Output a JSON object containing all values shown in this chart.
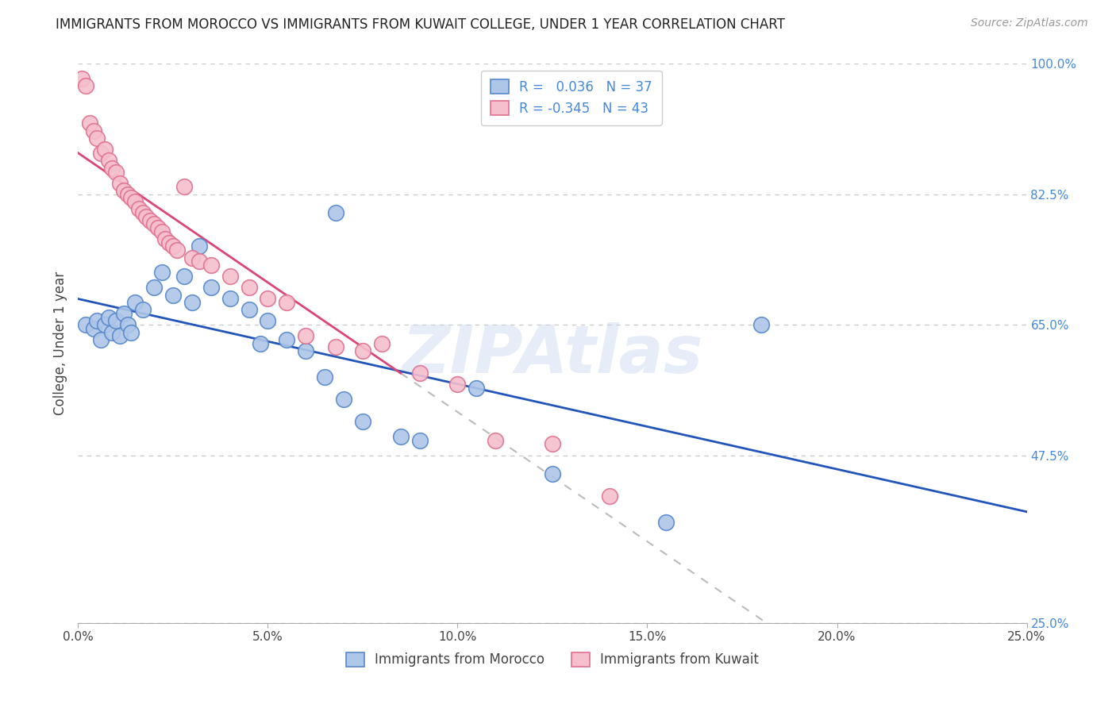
{
  "title": "IMMIGRANTS FROM MOROCCO VS IMMIGRANTS FROM KUWAIT COLLEGE, UNDER 1 YEAR CORRELATION CHART",
  "source": "Source: ZipAtlas.com",
  "ylabel": "College, Under 1 year",
  "x_min": 0.0,
  "x_max": 25.0,
  "y_min": 25.0,
  "y_max": 100.0,
  "x_ticks": [
    0.0,
    5.0,
    10.0,
    15.0,
    20.0,
    25.0
  ],
  "y_ticks": [
    25.0,
    47.5,
    65.0,
    82.5,
    100.0
  ],
  "morocco_color": "#aec6e8",
  "morocco_edge": "#5588cc",
  "kuwait_color": "#f5bfcd",
  "kuwait_edge": "#e07090",
  "line_morocco_color": "#2255bb",
  "line_kuwait_color": "#dd4477",
  "morocco_R": 0.036,
  "morocco_N": 37,
  "kuwait_R": -0.345,
  "kuwait_N": 43,
  "legend_label_morocco": "Immigrants from Morocco",
  "legend_label_kuwait": "Immigrants from Kuwait",
  "watermark": "ZIPAtlas",
  "background_color": "#ffffff",
  "grid_color": "#cccccc",
  "morocco_x": [
    0.2,
    0.4,
    0.5,
    0.6,
    0.7,
    0.8,
    0.9,
    1.0,
    1.1,
    1.2,
    1.3,
    1.4,
    1.5,
    1.7,
    2.0,
    2.2,
    2.5,
    2.8,
    3.0,
    3.5,
    4.0,
    4.5,
    5.0,
    5.5,
    6.0,
    6.5,
    7.0,
    7.5,
    8.5,
    9.0,
    10.5,
    12.5,
    15.5,
    18.0,
    3.2,
    4.8,
    6.8
  ],
  "morocco_y": [
    65.0,
    64.5,
    65.5,
    63.0,
    65.0,
    66.0,
    64.0,
    65.5,
    63.5,
    66.5,
    65.0,
    64.0,
    68.0,
    67.0,
    70.0,
    72.0,
    69.0,
    71.5,
    68.0,
    70.0,
    68.5,
    67.0,
    65.5,
    63.0,
    61.5,
    58.0,
    55.0,
    52.0,
    50.0,
    49.5,
    56.5,
    45.0,
    38.5,
    65.0,
    75.5,
    62.5,
    80.0
  ],
  "kuwait_x": [
    0.1,
    0.2,
    0.3,
    0.4,
    0.5,
    0.6,
    0.7,
    0.8,
    0.9,
    1.0,
    1.1,
    1.2,
    1.3,
    1.4,
    1.5,
    1.6,
    1.7,
    1.8,
    1.9,
    2.0,
    2.1,
    2.2,
    2.3,
    2.4,
    2.5,
    2.6,
    2.8,
    3.0,
    3.2,
    3.5,
    4.0,
    4.5,
    5.0,
    5.5,
    6.0,
    6.8,
    7.5,
    8.0,
    9.0,
    10.0,
    11.0,
    12.5,
    14.0
  ],
  "kuwait_y": [
    98.0,
    97.0,
    92.0,
    91.0,
    90.0,
    88.0,
    88.5,
    87.0,
    86.0,
    85.5,
    84.0,
    83.0,
    82.5,
    82.0,
    81.5,
    80.5,
    80.0,
    79.5,
    79.0,
    78.5,
    78.0,
    77.5,
    76.5,
    76.0,
    75.5,
    75.0,
    83.5,
    74.0,
    73.5,
    73.0,
    71.5,
    70.0,
    68.5,
    68.0,
    63.5,
    62.0,
    61.5,
    62.5,
    58.5,
    57.0,
    49.5,
    49.0,
    42.0
  ]
}
